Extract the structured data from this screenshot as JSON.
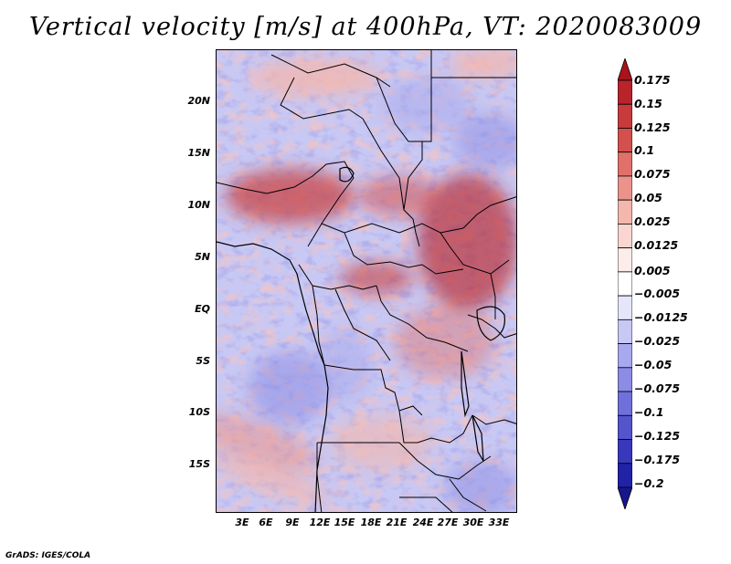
{
  "title": "Vertical velocity [m/s] at 400hPa, VT: 2020083009",
  "credit": "GrADS: IGES/COLA",
  "lat_labels": [
    "20N",
    "15N",
    "10N",
    "5N",
    "EQ",
    "5S",
    "10S",
    "15S"
  ],
  "lon_labels": [
    "3E",
    "6E",
    "9E",
    "12E",
    "15E",
    "18E",
    "21E",
    "24E",
    "27E",
    "30E",
    "33E"
  ],
  "colorbar": {
    "levels": [
      "0.175",
      "0.15",
      "0.125",
      "0.1",
      "0.075",
      "0.05",
      "0.025",
      "0.0125",
      "0.005",
      "−0.005",
      "−0.0125",
      "−0.025",
      "−0.05",
      "−0.075",
      "−0.1",
      "−0.125",
      "−0.175",
      "−0.2"
    ],
    "colors": [
      "#a8141c",
      "#b8242a",
      "#c83a3c",
      "#d4504e",
      "#e0706a",
      "#eb938b",
      "#f4b7ae",
      "#f9d6cf",
      "#fcecea",
      "#ffffff",
      "#e6e6fa",
      "#c8c8f4",
      "#a8a8ee",
      "#8c8ce6",
      "#7070dc",
      "#5454cc",
      "#3838bc",
      "#2222a8",
      "#16168e"
    ]
  }
}
